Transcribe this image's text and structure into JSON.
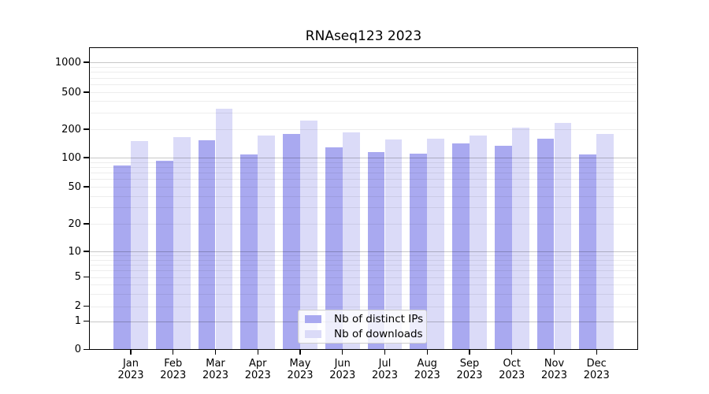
{
  "chart_data": {
    "type": "bar",
    "title": "RNAseq123 2023",
    "categories": [
      "Jan",
      "Feb",
      "Mar",
      "Apr",
      "May",
      "Jun",
      "Jul",
      "Aug",
      "Sep",
      "Oct",
      "Nov",
      "Dec"
    ],
    "category_year": "2023",
    "series": [
      {
        "name": "Nb of distinct IPs",
        "color": "#a9a9f0",
        "values": [
          83,
          92,
          152,
          109,
          177,
          128,
          114,
          110,
          142,
          134,
          158,
          107
        ]
      },
      {
        "name": "Nb of downloads",
        "color": "#dbdbf8",
        "values": [
          150,
          164,
          332,
          171,
          246,
          185,
          155,
          159,
          172,
          208,
          232,
          178
        ]
      }
    ],
    "y_axis": {
      "scale": "log10(x+1)",
      "tick_labels": [
        "0",
        "1",
        "2",
        "5",
        "10",
        "20",
        "50",
        "100",
        "200",
        "500",
        "1000"
      ],
      "tick_values": [
        0,
        1,
        2,
        5,
        10,
        20,
        50,
        100,
        200,
        500,
        1000
      ],
      "minor_grid_values": [
        2,
        3,
        4,
        5,
        6,
        7,
        8,
        9,
        20,
        30,
        40,
        50,
        60,
        70,
        80,
        90,
        200,
        300,
        400,
        500,
        600,
        700,
        800,
        900
      ],
      "major_grid_values": [
        1,
        10,
        100,
        1000
      ],
      "ylim": [
        0,
        1400
      ]
    },
    "legend_position": "bottom-center",
    "grid": true,
    "background_color": "#ffffff",
    "text_color": "#000000"
  }
}
